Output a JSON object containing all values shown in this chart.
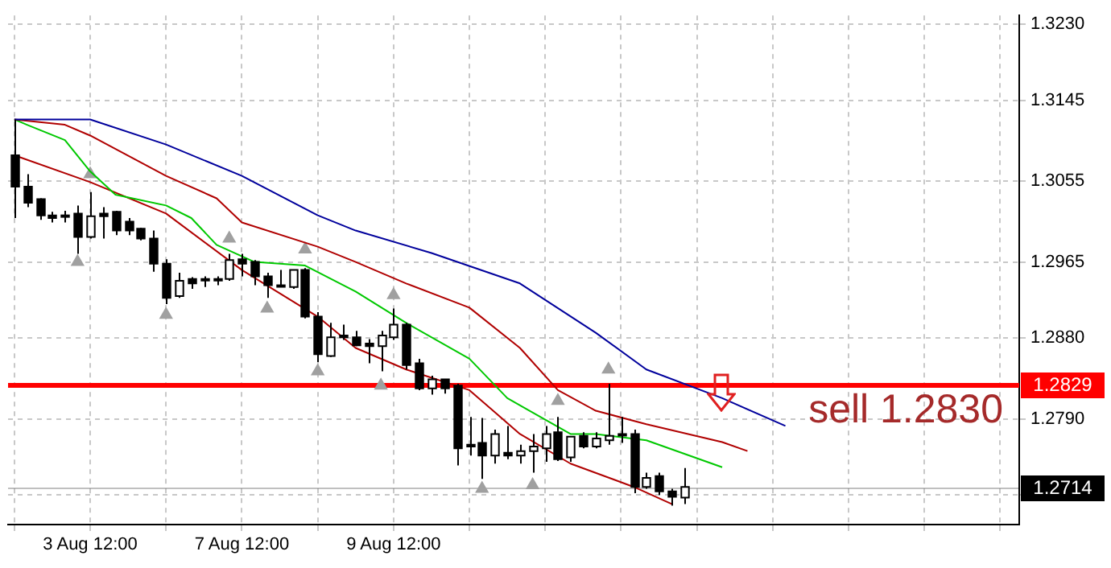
{
  "chart_data": {
    "type": "candlestick",
    "categories": [
      null,
      null,
      null,
      null,
      null,
      null,
      "3 Aug 12:00",
      null,
      null,
      null,
      null,
      null,
      null,
      null,
      null,
      null,
      null,
      null,
      "7 Aug 12:00",
      null,
      null,
      null,
      null,
      null,
      null,
      null,
      null,
      null,
      null,
      null,
      "9 Aug 12:00",
      null,
      null,
      null,
      null,
      null,
      null,
      null,
      null,
      null,
      null,
      null,
      null,
      null,
      null,
      null,
      null,
      null,
      null,
      null,
      null,
      null,
      null,
      null,
      null,
      null,
      null,
      null,
      null,
      null,
      null,
      null,
      null,
      null,
      null,
      null,
      null,
      null,
      null,
      null,
      null,
      null,
      null,
      null,
      null,
      null,
      null,
      null,
      null,
      null
    ],
    "ohlc": [
      [
        1.3084,
        1.3124,
        1.3014,
        1.3049
      ],
      [
        1.3049,
        1.3063,
        1.3026,
        1.3031
      ],
      [
        1.3035,
        1.3036,
        1.3012,
        1.3017
      ],
      [
        1.3017,
        1.3021,
        1.3009,
        1.3014
      ],
      [
        1.3017,
        1.3022,
        1.3009,
        1.3016
      ],
      [
        1.3019,
        1.3028,
        1.2974,
        1.2993
      ],
      [
        1.2993,
        1.3043,
        1.2991,
        1.3016
      ],
      [
        1.3019,
        1.3026,
        1.2991,
        1.3016
      ],
      [
        1.3021,
        1.3022,
        1.2995,
        1.3
      ],
      [
        1.301,
        1.3014,
        1.2995,
        1.3
      ],
      [
        1.3002,
        1.3003,
        1.2989,
        1.2991
      ],
      [
        1.2991,
        1.3,
        1.2954,
        1.2963
      ],
      [
        1.2963,
        1.2968,
        1.2918,
        1.2925
      ],
      [
        1.2927,
        1.2953,
        1.2925,
        1.2944
      ],
      [
        1.2946,
        1.2948,
        1.2935,
        1.2941
      ],
      [
        1.2946,
        1.2949,
        1.2937,
        1.2945
      ],
      [
        1.2946,
        1.2949,
        1.2939,
        1.2946
      ],
      [
        1.2946,
        1.2974,
        1.2944,
        1.2967
      ],
      [
        1.2968,
        1.2974,
        1.2949,
        1.2963
      ],
      [
        1.2965,
        1.2967,
        1.2939,
        1.2949
      ],
      [
        1.2949,
        1.2953,
        1.2925,
        1.2939
      ],
      [
        1.2939,
        1.2956,
        1.2937,
        1.2938
      ],
      [
        1.2937,
        1.2956,
        1.2935,
        1.2956
      ],
      [
        1.2956,
        1.2958,
        1.2902,
        1.2904
      ],
      [
        1.2904,
        1.2909,
        1.2853,
        1.2862
      ],
      [
        1.286,
        1.2897,
        1.2859,
        1.2881
      ],
      [
        1.2883,
        1.2895,
        1.2878,
        1.2881
      ],
      [
        1.2881,
        1.2888,
        1.2871,
        1.2872
      ],
      [
        1.2874,
        1.2879,
        1.2852,
        1.2871
      ],
      [
        1.2871,
        1.2888,
        1.2843,
        1.2883
      ],
      [
        1.2881,
        1.2913,
        1.2878,
        1.2895
      ],
      [
        1.2895,
        1.2897,
        1.2845,
        1.285
      ],
      [
        1.2852,
        1.2857,
        1.2822,
        1.2824
      ],
      [
        1.2824,
        1.2838,
        1.2817,
        1.2834
      ],
      [
        1.2834,
        1.2834,
        1.2818,
        1.2824
      ],
      [
        1.2827,
        1.2829,
        1.2738,
        1.2757
      ],
      [
        1.2761,
        1.2792,
        1.2749,
        1.2759
      ],
      [
        1.2763,
        1.2791,
        1.2723,
        1.2749
      ],
      [
        1.2749,
        1.2778,
        1.274,
        1.2773
      ],
      [
        1.2752,
        1.2782,
        1.2745,
        1.2749
      ],
      [
        1.2749,
        1.2761,
        1.274,
        1.2754
      ],
      [
        1.2754,
        1.2773,
        1.273,
        1.2759
      ],
      [
        1.2757,
        1.2782,
        1.2742,
        1.2773
      ],
      [
        1.2775,
        1.2792,
        1.2743,
        1.2745
      ],
      [
        1.2747,
        1.277,
        1.2742,
        1.277
      ],
      [
        1.2771,
        1.2775,
        1.2757,
        1.2759
      ],
      [
        1.2759,
        1.2775,
        1.2757,
        1.2768
      ],
      [
        1.2766,
        1.2829,
        1.2761,
        1.2771
      ],
      [
        1.2773,
        1.2792,
        1.2763,
        1.2772
      ],
      [
        1.2773,
        1.2778,
        1.2707,
        1.2714
      ],
      [
        1.2714,
        1.273,
        1.2712,
        1.2724
      ],
      [
        1.2726,
        1.273,
        1.2705,
        1.2709
      ],
      [
        1.2709,
        1.2712,
        1.2693,
        1.2703
      ],
      [
        1.2702,
        1.2735,
        1.2695,
        1.2714
      ],
      null,
      null,
      null,
      null,
      null,
      null,
      null,
      null,
      null,
      null,
      null,
      null,
      null,
      null,
      null,
      null,
      null,
      null,
      null,
      null,
      null,
      null,
      null,
      null,
      null,
      null
    ],
    "series": [
      {
        "type": "line",
        "color": "#00009c",
        "values": [
          1.3124,
          null,
          null,
          null,
          null,
          null,
          1.3124,
          null,
          null,
          null,
          null,
          null,
          1.3096,
          null,
          null,
          null,
          null,
          null,
          1.3061,
          null,
          null,
          null,
          null,
          null,
          1.3017,
          null,
          null,
          1.3,
          null,
          null,
          null,
          null,
          null,
          1.2975,
          null,
          null,
          null,
          null,
          null,
          null,
          1.2941,
          null,
          null,
          null,
          null,
          null,
          1.2886,
          null,
          null,
          null,
          1.2845,
          null,
          null,
          null,
          null,
          null,
          1.2813,
          null,
          null,
          null,
          null,
          1.2782,
          null,
          null,
          null,
          null,
          null,
          null,
          null,
          null,
          null,
          null,
          null,
          null,
          null,
          null,
          null,
          null,
          null,
          null
        ]
      },
      {
        "type": "line",
        "color": "#b00000",
        "values": [
          1.3124,
          null,
          null,
          null,
          1.3118,
          null,
          1.3106,
          null,
          null,
          null,
          null,
          null,
          1.3061,
          null,
          null,
          null,
          1.3036,
          null,
          1.3009,
          null,
          null,
          null,
          null,
          null,
          1.2982,
          null,
          null,
          1.2965,
          null,
          null,
          null,
          1.2941,
          null,
          null,
          null,
          null,
          1.2914,
          null,
          null,
          null,
          1.2869,
          null,
          null,
          1.2822,
          null,
          null,
          1.2799,
          null,
          null,
          null,
          1.2784,
          null,
          null,
          null,
          null,
          null,
          1.2764,
          null,
          1.2754,
          null,
          null,
          null,
          null,
          null,
          null,
          null,
          null,
          null,
          null,
          null,
          null,
          null,
          null,
          null,
          null,
          null,
          null,
          null,
          null,
          null
        ]
      },
      {
        "type": "line",
        "color": "#00c800",
        "values": [
          1.3124,
          1.3118,
          null,
          null,
          1.3101,
          null,
          1.3066,
          null,
          1.304,
          null,
          null,
          null,
          1.3028,
          null,
          1.3014,
          null,
          1.2984,
          null,
          null,
          1.2965,
          null,
          null,
          null,
          1.2961,
          null,
          null,
          null,
          1.2932,
          null,
          null,
          null,
          1.2897,
          null,
          null,
          null,
          null,
          1.2857,
          null,
          null,
          1.2813,
          null,
          null,
          null,
          null,
          1.2773,
          null,
          1.2773,
          null,
          null,
          null,
          1.2766,
          null,
          null,
          null,
          null,
          null,
          1.2736,
          null,
          null,
          null,
          null,
          null,
          null,
          null,
          null,
          null,
          null,
          null,
          null,
          null,
          null,
          null,
          null,
          null,
          null,
          null,
          null,
          null,
          null,
          null
        ]
      },
      {
        "type": "line",
        "color": "#b00000",
        "values": [
          1.3084,
          null,
          null,
          null,
          null,
          null,
          1.3054,
          null,
          null,
          null,
          null,
          null,
          1.3019,
          null,
          null,
          null,
          null,
          null,
          1.2956,
          null,
          null,
          null,
          null,
          null,
          1.2904,
          null,
          null,
          1.2869,
          null,
          null,
          null,
          1.2845,
          null,
          null,
          null,
          null,
          1.2822,
          null,
          null,
          null,
          1.2773,
          null,
          null,
          null,
          1.274,
          null,
          null,
          null,
          null,
          1.2714,
          null,
          null,
          1.2695,
          null,
          null,
          null,
          null,
          null,
          null,
          null,
          null,
          null,
          null,
          null,
          null,
          null,
          null,
          null,
          null,
          null,
          null,
          null,
          null,
          null,
          null,
          null,
          null,
          null,
          null,
          null
        ]
      },
      {
        "type": "scatter",
        "marker": "triangle",
        "color": "#a0a0a0",
        "values": [
          null,
          null,
          null,
          null,
          null,
          1.2965,
          1.3063,
          null,
          null,
          null,
          null,
          null,
          1.2906,
          null,
          null,
          null,
          null,
          1.2991,
          null,
          null,
          1.2913,
          null,
          null,
          1.2979,
          1.2843,
          null,
          null,
          null,
          null,
          1.2827,
          1.2928,
          null,
          null,
          null,
          null,
          null,
          null,
          1.2712,
          null,
          null,
          null,
          1.2716,
          null,
          1.281,
          null,
          null,
          null,
          1.2845,
          null,
          null,
          null,
          null,
          null,
          null,
          null,
          null,
          null,
          null,
          null,
          null,
          null,
          null,
          null,
          null,
          null,
          null,
          null,
          null,
          null,
          null,
          null,
          null,
          null,
          null,
          null,
          null,
          null,
          null,
          null,
          null
        ]
      }
    ],
    "ylim": [
      1.2672,
      1.324
    ],
    "yticks": [
      {
        "value": 1.323,
        "label": "1.3230"
      },
      1.3145,
      1.3055,
      1.2965,
      {
        "value": 1.288,
        "label": "1.2880"
      },
      {
        "value": 1.279,
        "label": "1.2790"
      },
      {
        "value": 1.2705,
        "label": null
      }
    ],
    "grid": true,
    "ref_lines": [
      {
        "axis": "y",
        "value": 1.2829,
        "label": "1.2829",
        "color": "#ff0000"
      },
      {
        "axis": "y",
        "value": 1.2714,
        "label": "1.2714",
        "color": "#000000"
      }
    ],
    "annotations": [
      "sell 1.2830"
    ]
  }
}
